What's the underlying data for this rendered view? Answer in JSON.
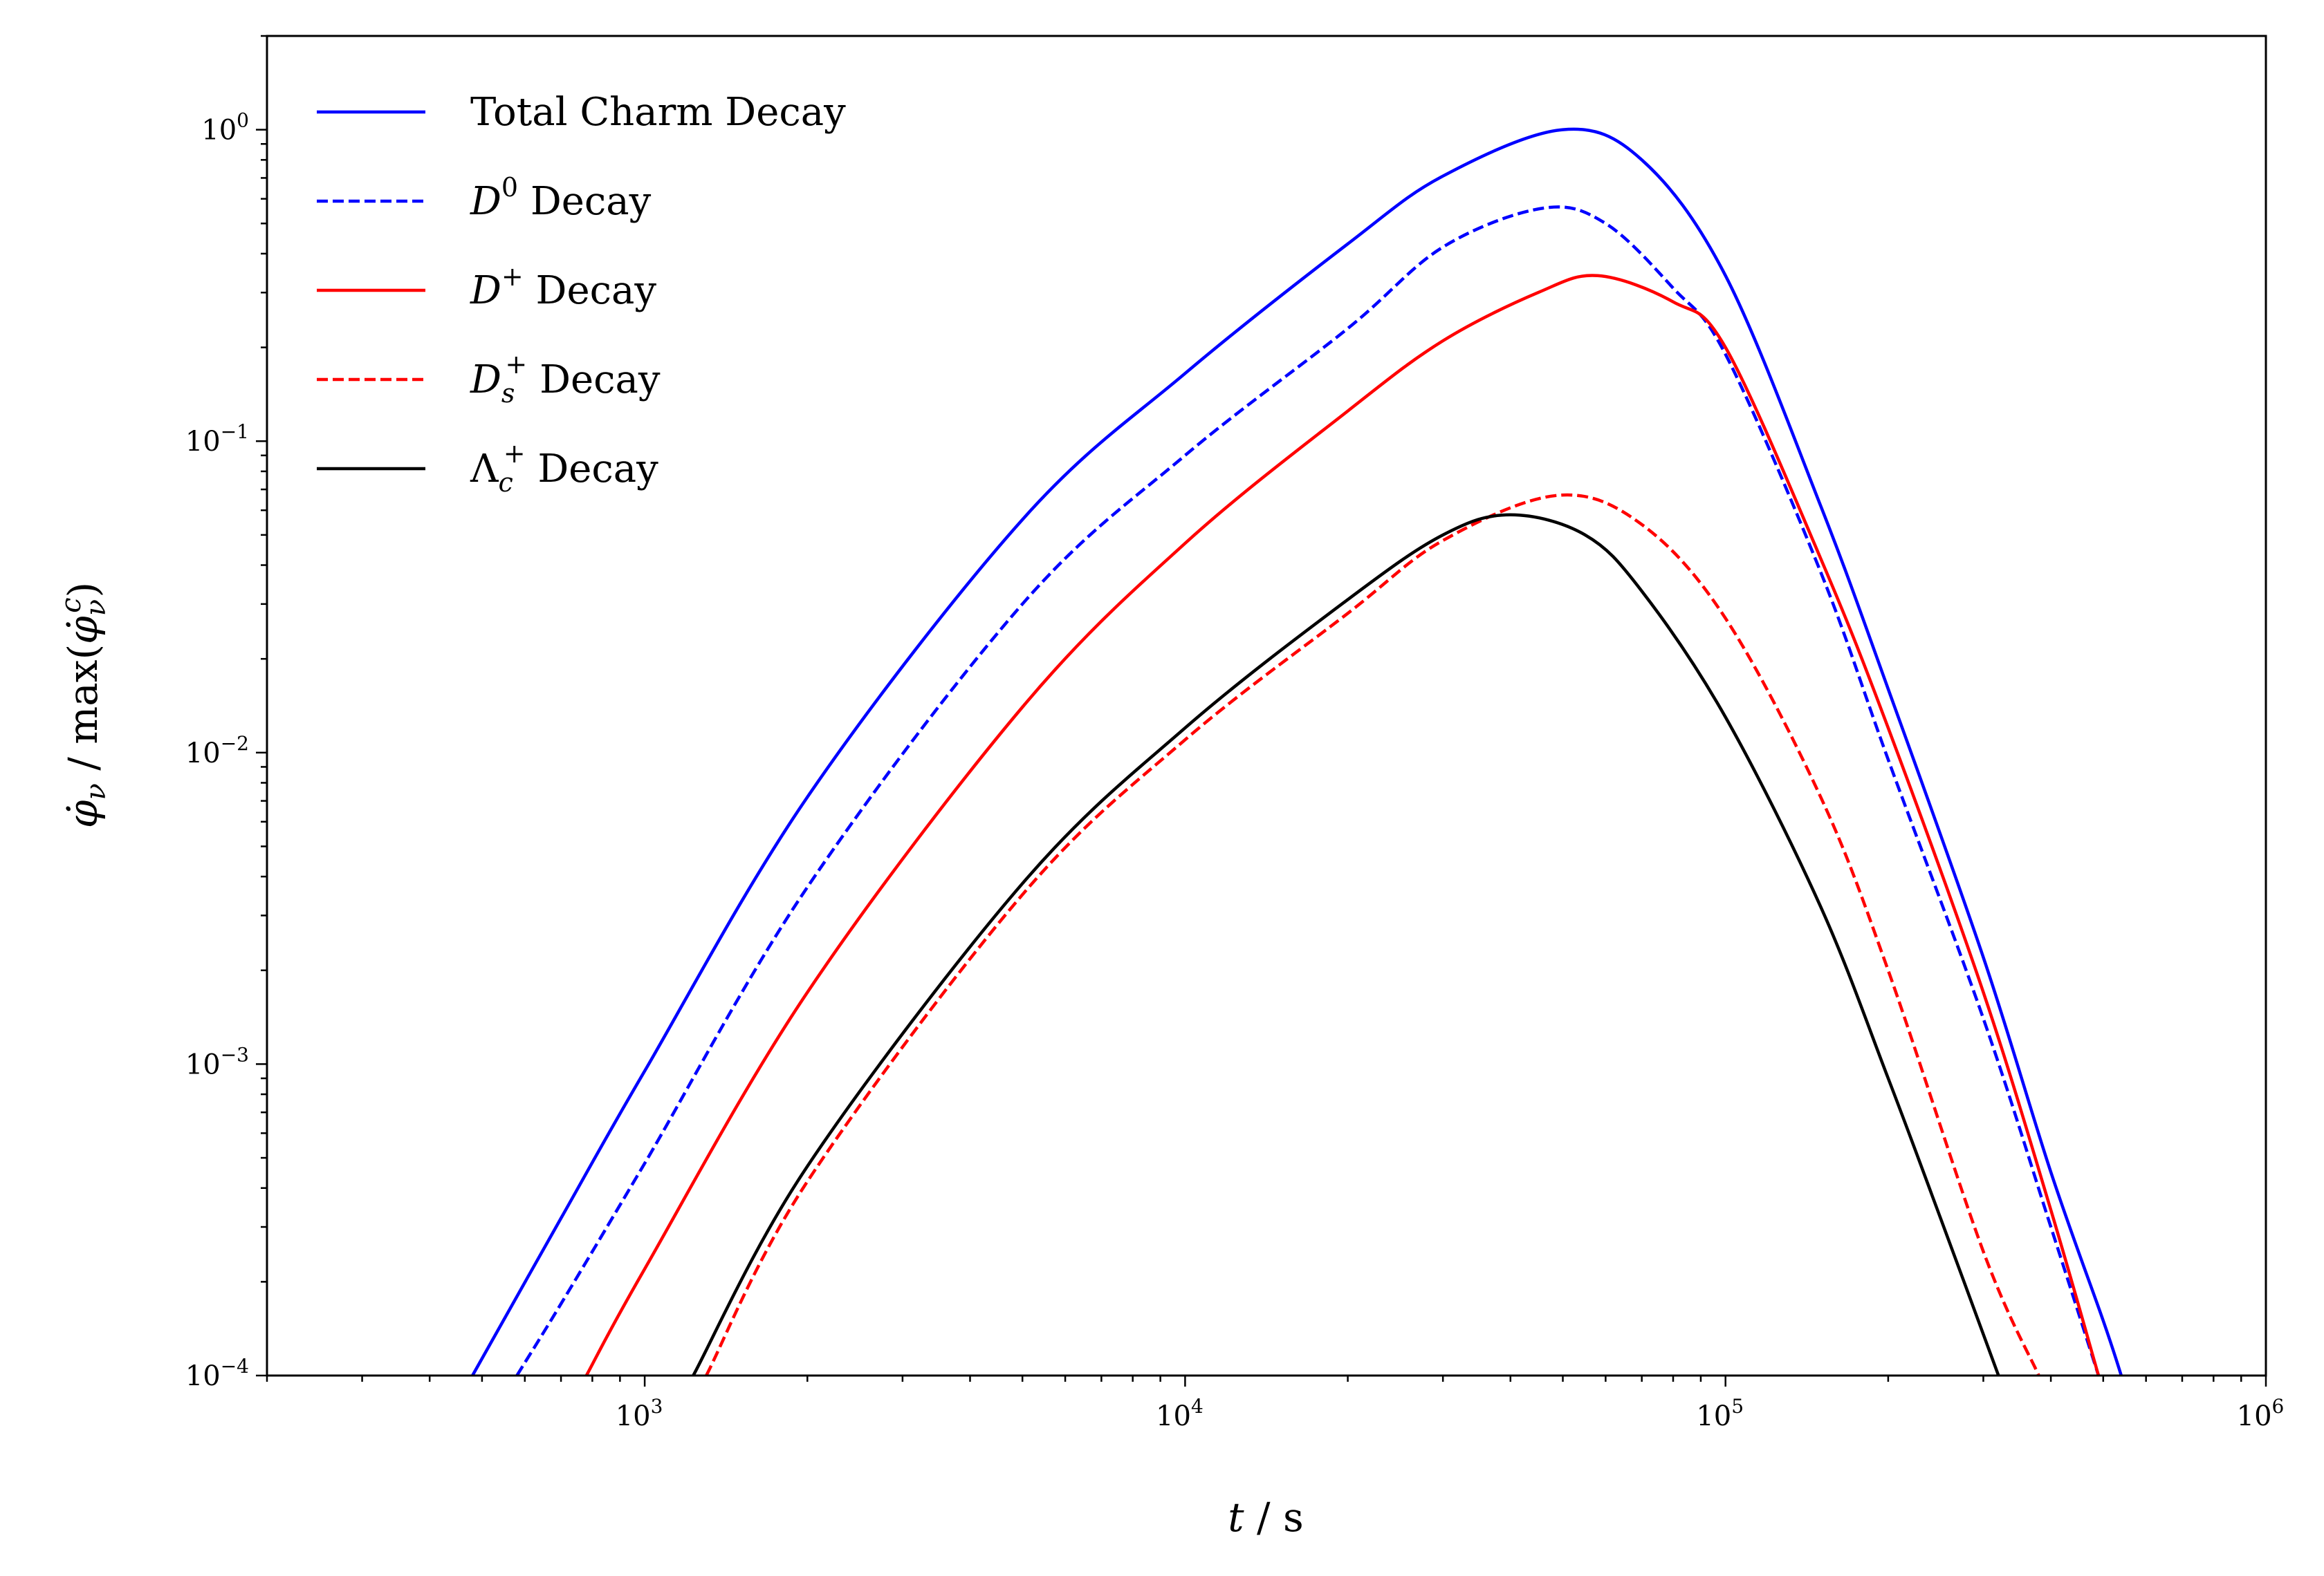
{
  "chart_data": {
    "type": "line",
    "x_scale": "log",
    "y_scale": "log",
    "xlim": [
      200,
      1000000
    ],
    "ylim": [
      0.0001,
      2
    ],
    "xlabel": {
      "var": "t",
      "sep": " / ",
      "unit": "s"
    },
    "ylabel": {
      "num": "φ̇",
      "num_sub": "ν",
      "mid": " / max(",
      "den": "φ̇",
      "den_sub": "ν",
      "den_sup": "c",
      "close": ")"
    },
    "x_ticks": [
      {
        "value": 1000,
        "base": "10",
        "exp": "3"
      },
      {
        "value": 10000,
        "base": "10",
        "exp": "4"
      },
      {
        "value": 100000,
        "base": "10",
        "exp": "5"
      },
      {
        "value": 1000000,
        "base": "10",
        "exp": "6"
      }
    ],
    "y_ticks": [
      {
        "value": 0.0001,
        "base": "10",
        "exp": "−4"
      },
      {
        "value": 0.001,
        "base": "10",
        "exp": "−3"
      },
      {
        "value": 0.01,
        "base": "10",
        "exp": "−2"
      },
      {
        "value": 0.1,
        "base": "10",
        "exp": "−1"
      },
      {
        "value": 1,
        "base": "10",
        "exp": "0"
      }
    ],
    "grid": false,
    "legend_position": "top-left",
    "series": [
      {
        "name": "Total Charm Decay",
        "legend": {
          "main": "Total Charm Decay"
        },
        "color": "#0000ff",
        "dash": "solid",
        "points": [
          [
            480,
            0.0001
          ],
          [
            700,
            0.00032
          ],
          [
            1000,
            0.00095
          ],
          [
            2000,
            0.0072
          ],
          [
            5000,
            0.056
          ],
          [
            10000,
            0.165
          ],
          [
            20000,
            0.43
          ],
          [
            30000,
            0.71
          ],
          [
            50000,
            1.0
          ],
          [
            70000,
            0.8
          ],
          [
            100000,
            0.34
          ],
          [
            150000,
            0.062
          ],
          [
            200000,
            0.016
          ],
          [
            300000,
            0.0022
          ],
          [
            400000,
            0.00045
          ],
          [
            500000,
            0.00015
          ],
          [
            540000,
            0.0001
          ]
        ]
      },
      {
        "name": "D0 Decay",
        "legend": {
          "main": "D",
          "sup": "0",
          "tail": " Decay"
        },
        "color": "#0000ff",
        "dash": "dashed",
        "points": [
          [
            580,
            0.0001
          ],
          [
            700,
            0.00017
          ],
          [
            1000,
            0.00048
          ],
          [
            2000,
            0.0037
          ],
          [
            5000,
            0.03
          ],
          [
            10000,
            0.09
          ],
          [
            20000,
            0.23
          ],
          [
            30000,
            0.42
          ],
          [
            46000,
            0.56
          ],
          [
            60000,
            0.5
          ],
          [
            80000,
            0.31
          ],
          [
            100000,
            0.19
          ],
          [
            150000,
            0.038
          ],
          [
            200000,
            0.0095
          ],
          [
            300000,
            0.0014
          ],
          [
            400000,
            0.0003
          ],
          [
            490000,
            0.0001
          ]
        ]
      },
      {
        "name": "D+ Decay",
        "legend": {
          "main": "D",
          "sup": "+",
          "tail": " Decay"
        },
        "color": "#ff0000",
        "dash": "solid",
        "points": [
          [
            780,
            0.0001
          ],
          [
            1000,
            0.00022
          ],
          [
            2000,
            0.0017
          ],
          [
            5000,
            0.014
          ],
          [
            10000,
            0.047
          ],
          [
            20000,
            0.125
          ],
          [
            30000,
            0.21
          ],
          [
            45000,
            0.3
          ],
          [
            58000,
            0.34
          ],
          [
            80000,
            0.28
          ],
          [
            100000,
            0.2
          ],
          [
            150000,
            0.042
          ],
          [
            200000,
            0.012
          ],
          [
            300000,
            0.0017
          ],
          [
            400000,
            0.00034
          ],
          [
            490000,
            0.0001
          ]
        ]
      },
      {
        "name": "Ds+ Decay",
        "legend": {
          "main": "D",
          "sub": "s",
          "sup": "+",
          "tail": " Decay"
        },
        "color": "#ff0000",
        "dash": "dashed",
        "points": [
          [
            1300,
            0.0001
          ],
          [
            2000,
            0.00042
          ],
          [
            5000,
            0.0035
          ],
          [
            10000,
            0.011
          ],
          [
            20000,
            0.028
          ],
          [
            30000,
            0.048
          ],
          [
            49000,
            0.067
          ],
          [
            70000,
            0.054
          ],
          [
            100000,
            0.027
          ],
          [
            150000,
            0.0072
          ],
          [
            200000,
            0.002
          ],
          [
            300000,
            0.00025
          ],
          [
            380000,
            0.0001
          ]
        ]
      },
      {
        "name": "Λc+ Decay",
        "legend": {
          "main": "Λ",
          "sub": "c",
          "sup": "+",
          "tail": " Decay"
        },
        "color": "#000000",
        "dash": "solid",
        "points": [
          [
            1230,
            0.0001
          ],
          [
            2000,
            0.00047
          ],
          [
            5000,
            0.0038
          ],
          [
            10000,
            0.012
          ],
          [
            20000,
            0.031
          ],
          [
            30000,
            0.05
          ],
          [
            40000,
            0.058
          ],
          [
            55000,
            0.05
          ],
          [
            70000,
            0.033
          ],
          [
            100000,
            0.013
          ],
          [
            150000,
            0.0032
          ],
          [
            200000,
            0.0009
          ],
          [
            250000,
            0.00032
          ],
          [
            320000,
            0.0001
          ]
        ]
      }
    ]
  }
}
